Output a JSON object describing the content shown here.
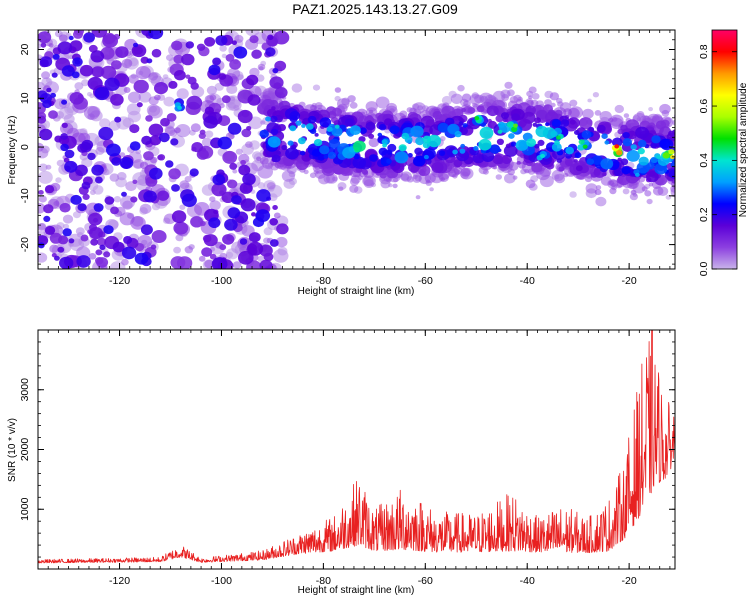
{
  "figure": {
    "title": "PAZ1.2025.143.13.27.G09"
  },
  "chart_data": [
    {
      "type": "heatmap",
      "xlabel": "Height of straight line (km)",
      "ylabel": "Frequency (Hz)",
      "xlim": [
        -136,
        -11
      ],
      "ylim": [
        -25,
        24
      ],
      "x_ticks": [
        "-120",
        "-100",
        "-80",
        "-60",
        "-40",
        "-20"
      ],
      "y_ticks": [
        "20",
        "10",
        "0",
        "-10",
        "-20"
      ],
      "colorbar": {
        "label": "Normalized spectral amplitude",
        "range": [
          0,
          0.88
        ],
        "ticks": [
          "0.0",
          "0.2",
          "0.4",
          "0.6",
          "0.8"
        ],
        "colormap": [
          "#c9b4ea",
          "#8c3fe0",
          "#5b00d8",
          "#0000ff",
          "#00a0ff",
          "#00e5d0",
          "#00e000",
          "#aaff00",
          "#ffff00",
          "#ff9900",
          "#ff0000",
          "#ff0066"
        ]
      },
      "ridge": [
        {
          "x": -90,
          "y": 3.5
        },
        {
          "x": -80,
          "y": 1.5
        },
        {
          "x": -70,
          "y": 0.5
        },
        {
          "x": -60,
          "y": 0.5
        },
        {
          "x": -50,
          "y": 2
        },
        {
          "x": -40,
          "y": 2.5
        },
        {
          "x": -30,
          "y": 0.5
        },
        {
          "x": -20,
          "y": -1.5
        },
        {
          "x": -11,
          "y": -1.5
        }
      ],
      "hotspots": [
        {
          "x": -108,
          "y": 8.5,
          "v": 0.4
        },
        {
          "x": -78,
          "y": 3.5,
          "v": 0.4
        },
        {
          "x": -74,
          "y": 0,
          "v": 0.45
        },
        {
          "x": -68,
          "y": 1,
          "v": 0.4
        },
        {
          "x": -50,
          "y": 5.5,
          "v": 0.5
        },
        {
          "x": -43,
          "y": 4,
          "v": 0.55
        },
        {
          "x": -37,
          "y": -1.5,
          "v": 0.42
        },
        {
          "x": -34,
          "y": 2.5,
          "v": 0.48
        },
        {
          "x": -29,
          "y": 0.5,
          "v": 0.5
        },
        {
          "x": -22,
          "y": -0.5,
          "v": 0.85
        },
        {
          "x": -18,
          "y": -5.5,
          "v": 0.35
        },
        {
          "x": -15,
          "y": -2.5,
          "v": 0.4
        },
        {
          "x": -12,
          "y": -1.5,
          "v": 0.7
        }
      ]
    },
    {
      "type": "line",
      "xlabel": "Height of straight line (km)",
      "ylabel": "SNR (10 * v/v)",
      "xlim": [
        -136,
        -11
      ],
      "ylim": [
        0,
        4000
      ],
      "x_ticks": [
        "-120",
        "-100",
        "-80",
        "-60",
        "-40",
        "-20"
      ],
      "y_ticks": [
        "1000",
        "2000",
        "3000"
      ],
      "series": [
        {
          "color": "#e82020",
          "envelope": [
            {
              "x": -136,
              "base": 100,
              "amp": 60
            },
            {
              "x": -112,
              "base": 120,
              "amp": 80
            },
            {
              "x": -108,
              "base": 200,
              "amp": 220
            },
            {
              "x": -104,
              "base": 110,
              "amp": 80
            },
            {
              "x": -92,
              "base": 150,
              "amp": 160
            },
            {
              "x": -85,
              "base": 250,
              "amp": 350
            },
            {
              "x": -78,
              "base": 300,
              "amp": 600
            },
            {
              "x": -73,
              "base": 400,
              "amp": 1200
            },
            {
              "x": -70,
              "base": 300,
              "amp": 700
            },
            {
              "x": -64,
              "base": 320,
              "amp": 1100
            },
            {
              "x": -58,
              "base": 280,
              "amp": 700
            },
            {
              "x": -50,
              "base": 280,
              "amp": 650
            },
            {
              "x": -43,
              "base": 300,
              "amp": 1000
            },
            {
              "x": -38,
              "base": 280,
              "amp": 600
            },
            {
              "x": -33,
              "base": 280,
              "amp": 800
            },
            {
              "x": -28,
              "base": 270,
              "amp": 600
            },
            {
              "x": -24,
              "base": 300,
              "amp": 900
            },
            {
              "x": -21,
              "base": 500,
              "amp": 1300
            },
            {
              "x": -18.5,
              "base": 800,
              "amp": 2200
            },
            {
              "x": -16.5,
              "base": 1100,
              "amp": 2800
            },
            {
              "x": -15,
              "base": 1400,
              "amp": 2400
            },
            {
              "x": -13,
              "base": 1500,
              "amp": 1300
            },
            {
              "x": -11,
              "base": 1800,
              "amp": 1000
            }
          ],
          "peak": {
            "x": -15.5,
            "y": 4000
          }
        }
      ]
    }
  ]
}
